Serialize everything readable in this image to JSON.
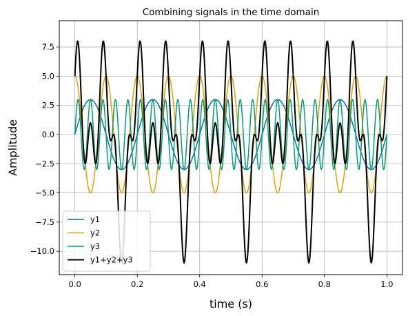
{
  "chart_data": {
    "type": "line",
    "title": "Combining signals in the time domain",
    "xlabel": "time (s)",
    "ylabel": "Amplitude",
    "xlim": [
      -0.05,
      1.05
    ],
    "ylim": [
      -12.0,
      9.75
    ],
    "x_ticks": [
      0.0,
      0.2,
      0.4,
      0.6,
      0.8,
      1.0
    ],
    "x_tick_labels": [
      "0.0",
      "0.2",
      "0.4",
      "0.6",
      "0.8",
      "1.0"
    ],
    "y_ticks": [
      -10.0,
      -7.5,
      -5.0,
      -2.5,
      0.0,
      2.5,
      5.0,
      7.5
    ],
    "y_tick_labels": [
      "−10.0",
      "−7.5",
      "−5.0",
      "−2.5",
      "0.0",
      "2.5",
      "5.0",
      "7.5"
    ],
    "grid": true,
    "legend_position": "lower-left",
    "series": [
      {
        "name": "y1",
        "color": "#0072b2",
        "amplitude": 3,
        "frequency_hz": 5,
        "phase": "sin",
        "linewidth": 1.5
      },
      {
        "name": "y2",
        "color": "#e69f00",
        "amplitude": 5,
        "frequency_hz": 10,
        "phase": "cos",
        "linewidth": 1.5
      },
      {
        "name": "y3",
        "color": "#009e73",
        "amplitude": 3,
        "frequency_hz": 25,
        "phase": "sin",
        "linewidth": 1.5
      },
      {
        "name": "y1+y2+y3",
        "color": "#000000",
        "amplitude": null,
        "frequency_hz": null,
        "phase": "sum",
        "linewidth": 2
      }
    ],
    "x_start": 0.0,
    "x_end": 1.0,
    "samples": 600
  }
}
